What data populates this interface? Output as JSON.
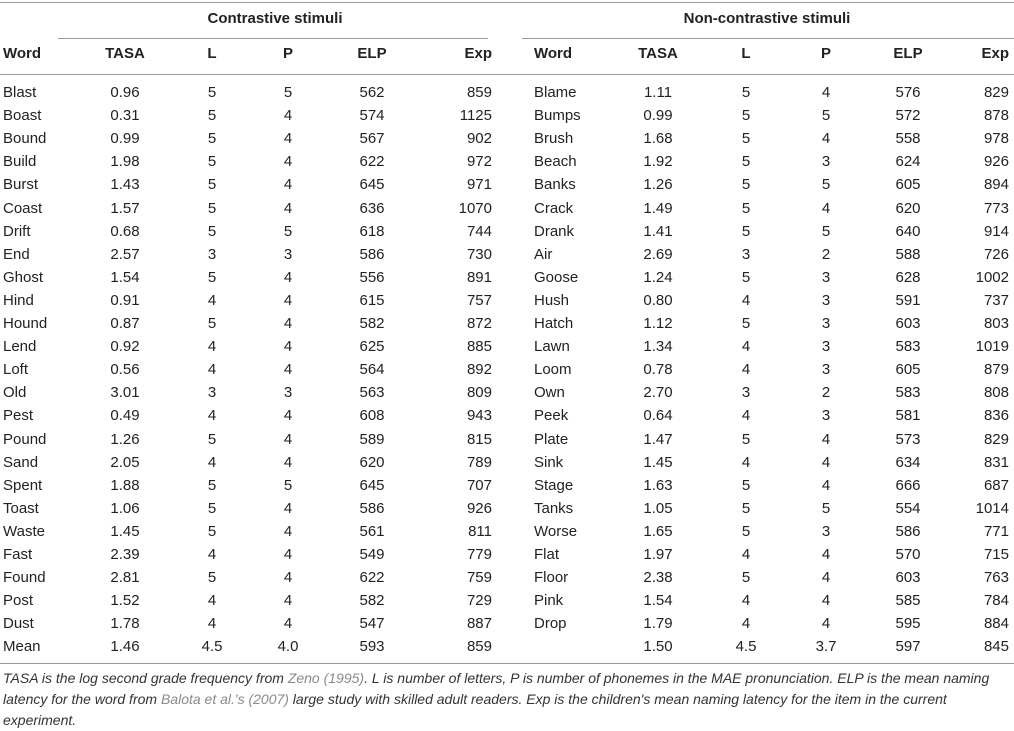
{
  "groups": {
    "left_title": "Contrastive stimuli",
    "right_title": "Non-contrastive stimuli"
  },
  "columns": [
    "Word",
    "TASA",
    "L",
    "P",
    "ELP",
    "Exp"
  ],
  "left_rows": [
    [
      "Blast",
      "0.96",
      "5",
      "5",
      "562",
      "859"
    ],
    [
      "Boast",
      "0.31",
      "5",
      "4",
      "574",
      "1125"
    ],
    [
      "Bound",
      "0.99",
      "5",
      "4",
      "567",
      "902"
    ],
    [
      "Build",
      "1.98",
      "5",
      "4",
      "622",
      "972"
    ],
    [
      "Burst",
      "1.43",
      "5",
      "4",
      "645",
      "971"
    ],
    [
      "Coast",
      "1.57",
      "5",
      "4",
      "636",
      "1070"
    ],
    [
      "Drift",
      "0.68",
      "5",
      "5",
      "618",
      "744"
    ],
    [
      "End",
      "2.57",
      "3",
      "3",
      "586",
      "730"
    ],
    [
      "Ghost",
      "1.54",
      "5",
      "4",
      "556",
      "891"
    ],
    [
      "Hind",
      "0.91",
      "4",
      "4",
      "615",
      "757"
    ],
    [
      "Hound",
      "0.87",
      "5",
      "4",
      "582",
      "872"
    ],
    [
      "Lend",
      "0.92",
      "4",
      "4",
      "625",
      "885"
    ],
    [
      "Loft",
      "0.56",
      "4",
      "4",
      "564",
      "892"
    ],
    [
      "Old",
      "3.01",
      "3",
      "3",
      "563",
      "809"
    ],
    [
      "Pest",
      "0.49",
      "4",
      "4",
      "608",
      "943"
    ],
    [
      "Pound",
      "1.26",
      "5",
      "4",
      "589",
      "815"
    ],
    [
      "Sand",
      "2.05",
      "4",
      "4",
      "620",
      "789"
    ],
    [
      "Spent",
      "1.88",
      "5",
      "5",
      "645",
      "707"
    ],
    [
      "Toast",
      "1.06",
      "5",
      "4",
      "586",
      "926"
    ],
    [
      "Waste",
      "1.45",
      "5",
      "4",
      "561",
      "811"
    ],
    [
      "Fast",
      "2.39",
      "4",
      "4",
      "549",
      "779"
    ],
    [
      "Found",
      "2.81",
      "5",
      "4",
      "622",
      "759"
    ],
    [
      "Post",
      "1.52",
      "4",
      "4",
      "582",
      "729"
    ],
    [
      "Dust",
      "1.78",
      "4",
      "4",
      "547",
      "887"
    ],
    [
      "Mean",
      "1.46",
      "4.5",
      "4.0",
      "593",
      "859"
    ]
  ],
  "right_rows": [
    [
      "Blame",
      "1.11",
      "5",
      "4",
      "576",
      "829"
    ],
    [
      "Bumps",
      "0.99",
      "5",
      "5",
      "572",
      "878"
    ],
    [
      "Brush",
      "1.68",
      "5",
      "4",
      "558",
      "978"
    ],
    [
      "Beach",
      "1.92",
      "5",
      "3",
      "624",
      "926"
    ],
    [
      "Banks",
      "1.26",
      "5",
      "5",
      "605",
      "894"
    ],
    [
      "Crack",
      "1.49",
      "5",
      "4",
      "620",
      "773"
    ],
    [
      "Drank",
      "1.41",
      "5",
      "5",
      "640",
      "914"
    ],
    [
      "Air",
      "2.69",
      "3",
      "2",
      "588",
      "726"
    ],
    [
      "Goose",
      "1.24",
      "5",
      "3",
      "628",
      "1002"
    ],
    [
      "Hush",
      "0.80",
      "4",
      "3",
      "591",
      "737"
    ],
    [
      "Hatch",
      "1.12",
      "5",
      "3",
      "603",
      "803"
    ],
    [
      "Lawn",
      "1.34",
      "4",
      "3",
      "583",
      "1019"
    ],
    [
      "Loom",
      "0.78",
      "4",
      "3",
      "605",
      "879"
    ],
    [
      "Own",
      "2.70",
      "3",
      "2",
      "583",
      "808"
    ],
    [
      "Peek",
      "0.64",
      "4",
      "3",
      "581",
      "836"
    ],
    [
      "Plate",
      "1.47",
      "5",
      "4",
      "573",
      "829"
    ],
    [
      "Sink",
      "1.45",
      "4",
      "4",
      "634",
      "831"
    ],
    [
      "Stage",
      "1.63",
      "5",
      "4",
      "666",
      "687"
    ],
    [
      "Tanks",
      "1.05",
      "5",
      "5",
      "554",
      "1014"
    ],
    [
      "Worse",
      "1.65",
      "5",
      "3",
      "586",
      "771"
    ],
    [
      "Flat",
      "1.97",
      "4",
      "4",
      "570",
      "715"
    ],
    [
      "Floor",
      "2.38",
      "5",
      "4",
      "603",
      "763"
    ],
    [
      "Pink",
      "1.54",
      "4",
      "4",
      "585",
      "784"
    ],
    [
      "Drop",
      "1.79",
      "4",
      "4",
      "595",
      "884"
    ],
    [
      "",
      "1.50",
      "4.5",
      "3.7",
      "597",
      "845"
    ]
  ],
  "footnote": {
    "p1": "TASA is the log second grade frequency from ",
    "ref1": "Zeno (1995)",
    "p2": ". L is number of letters, P is number of phonemes in the MAE pronunciation. ELP is the mean naming latency for the word from ",
    "ref2": "Balota et al.'s (2007)",
    "p3": " large study with skilled adult readers. Exp is the children's mean naming latency for the item in the current experiment."
  }
}
